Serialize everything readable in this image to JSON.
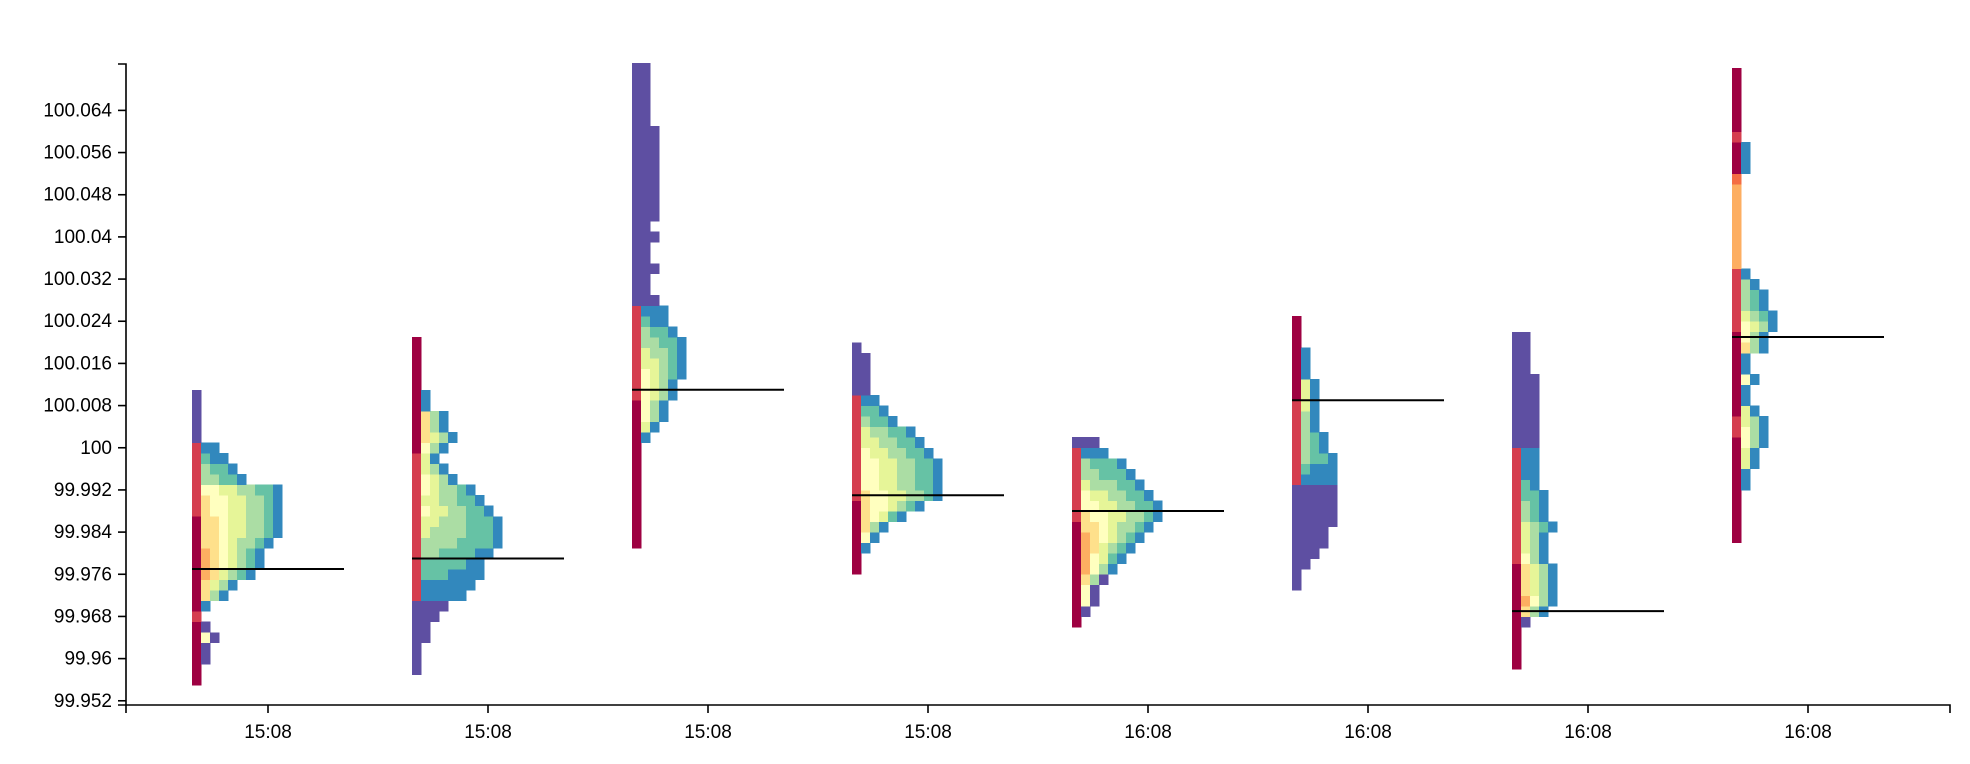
{
  "chart_data": {
    "type": "heatmap",
    "title": "",
    "xlabel": "",
    "ylabel": "",
    "ylim": [
      99.9512,
      100.0728
    ],
    "y_tick_labels": [
      "100.064",
      "100.056",
      "100.048",
      "100.04",
      "100.032",
      "100.024",
      "100.016",
      "100.008",
      "100",
      "99.992",
      "99.984",
      "99.976",
      "99.968",
      "99.96",
      "99.952"
    ],
    "y_tick_values": [
      100.064,
      100.056,
      100.048,
      100.04,
      100.032,
      100.024,
      100.016,
      100.008,
      100,
      99.992,
      99.984,
      99.976,
      99.968,
      99.96,
      99.952
    ],
    "x_tick_labels": [
      "15:08",
      "15:08",
      "15:08",
      "15:08",
      "16:08",
      "16:08",
      "16:08",
      "16:08"
    ],
    "price_step": 0.002,
    "palette": [
      "#9e0142",
      "#d53e4f",
      "#f46d43",
      "#fdae61",
      "#fee08b",
      "#ffffbf",
      "#e6f598",
      "#abdda4",
      "#66c2a5",
      "#3288bd",
      "#5e4fa2"
    ],
    "profiles": [
      {
        "label": "15:08",
        "close": 99.977,
        "low": 99.953,
        "high": 100.002,
        "widths": [
          0,
          1,
          1,
          2,
          2,
          3,
          2,
          1,
          2,
          4,
          5,
          7,
          8,
          8,
          9,
          10,
          10,
          10,
          10,
          10,
          6,
          5,
          4,
          3,
          1,
          1,
          1,
          1,
          1
        ],
        "split": [
          0,
          0,
          0,
          0,
          0,
          0.05,
          0.05,
          0.1,
          0.1,
          0.15,
          0.2,
          0.2,
          0.25,
          0.25,
          0.28,
          0.3,
          0.32,
          0.35,
          0.35,
          0.4,
          0.6,
          0.7,
          0.8,
          0.9,
          1,
          1,
          1,
          1,
          1
        ]
      },
      {
        "label": "15:08",
        "close": 99.979,
        "low": 99.957,
        "high": 100.01,
        "widths": [
          1,
          1,
          1,
          2,
          2,
          3,
          4,
          6,
          7,
          8,
          8,
          9,
          10,
          10,
          10,
          9,
          8,
          7,
          5,
          4,
          3,
          4,
          5,
          4,
          4,
          2,
          2,
          1,
          1,
          1,
          1,
          1
        ],
        "split": [
          1,
          1,
          1,
          1,
          1,
          1,
          1,
          0.9,
          0.85,
          0.8,
          0.75,
          0.7,
          0.65,
          0.6,
          0.55,
          0.5,
          0.5,
          0.45,
          0.4,
          0.4,
          0.35,
          0.3,
          0.3,
          0.2,
          0.2,
          0.1,
          0.1,
          0,
          0,
          0,
          0,
          0
        ]
      },
      {
        "label": "15:08",
        "close": 100.011,
        "low": 99.981,
        "high": 100.064,
        "widths": [
          1,
          1,
          1,
          1,
          1,
          1,
          1,
          1,
          1,
          1,
          2,
          3,
          4,
          4,
          5,
          5,
          6,
          6,
          6,
          6,
          5,
          4,
          4,
          3,
          2,
          2,
          3,
          2,
          2,
          3,
          2,
          3,
          3,
          3,
          3,
          3,
          3,
          3,
          3,
          3,
          2,
          2,
          2,
          2,
          2,
          2
        ],
        "split": [
          0,
          0,
          0,
          0,
          0,
          0,
          0,
          0,
          0,
          0,
          0.2,
          0.25,
          0.3,
          0.3,
          0.35,
          0.4,
          0.45,
          0.5,
          0.55,
          0.6,
          0.7,
          0.8,
          0.9,
          1,
          1,
          1,
          1,
          1,
          1,
          1,
          1,
          1,
          1,
          1,
          1,
          1,
          1,
          1,
          1,
          1,
          1,
          1,
          1,
          1,
          1,
          1
        ]
      },
      {
        "label": "15:08",
        "close": 99.991,
        "low": 99.976,
        "high": 100.02,
        "widths": [
          1,
          1,
          2,
          3,
          4,
          6,
          8,
          10,
          10,
          10,
          10,
          9,
          8,
          7,
          5,
          4,
          3,
          2,
          2,
          2,
          2,
          1
        ],
        "split": [
          0,
          0,
          0.1,
          0.15,
          0.2,
          0.25,
          0.3,
          0.35,
          0.4,
          0.4,
          0.45,
          0.5,
          0.55,
          0.6,
          0.65,
          0.7,
          0.8,
          1,
          1,
          1,
          1,
          1
        ]
      },
      {
        "label": "16:08",
        "close": 99.988,
        "low": 99.966,
        "high": 100.004,
        "widths": [
          1,
          2,
          3,
          3,
          4,
          5,
          6,
          7,
          8,
          9,
          10,
          10,
          9,
          8,
          7,
          6,
          4,
          3
        ],
        "split": [
          0,
          0,
          0,
          0,
          0.05,
          0.1,
          0.15,
          0.2,
          0.25,
          0.3,
          0.35,
          0.4,
          0.5,
          0.6,
          0.65,
          0.7,
          0.85,
          1
        ]
      },
      {
        "label": "16:08",
        "close": 100.009,
        "low": 99.973,
        "high": 100.024,
        "widths": [
          1,
          1,
          2,
          3,
          4,
          4,
          5,
          5,
          5,
          5,
          5,
          5,
          5,
          4,
          4,
          3,
          3,
          3,
          3,
          3,
          2,
          2,
          2,
          1,
          1,
          1
        ],
        "split": [
          1,
          1,
          1,
          1,
          1,
          1,
          1,
          1,
          1,
          1,
          0.9,
          0.8,
          0.7,
          0.6,
          0.55,
          0.5,
          0.45,
          0.4,
          0.3,
          0.2,
          0.1,
          0.1,
          0.1,
          0,
          0,
          0
        ]
      },
      {
        "label": "16:08",
        "close": 99.969,
        "low": 99.958,
        "high": 100.024,
        "widths": [
          1,
          1,
          1,
          1,
          2,
          4,
          5,
          5,
          5,
          5,
          4,
          4,
          4,
          5,
          4,
          4,
          4,
          3,
          3,
          3,
          3,
          3,
          3,
          3,
          3,
          3,
          3,
          3,
          2,
          2,
          2,
          2
        ],
        "split": [
          0,
          0,
          0,
          0,
          0,
          0.1,
          0.15,
          0.2,
          0.25,
          0.3,
          0.35,
          0.4,
          0.5,
          0.55,
          0.6,
          0.65,
          0.7,
          0.75,
          0.8,
          0.85,
          0.9,
          1,
          1,
          1,
          1,
          1,
          1,
          1,
          1,
          1,
          1,
          1
        ]
      },
      {
        "label": "16:08",
        "close": 100.021,
        "low": 99.982,
        "high": 100.072,
        "widths": [
          1,
          1,
          1,
          1,
          1,
          2,
          2,
          3,
          3,
          4,
          4,
          4,
          3,
          2,
          2,
          3,
          2,
          2,
          4,
          4,
          5,
          5,
          4,
          4,
          3,
          2,
          1,
          1,
          1,
          1,
          1,
          1,
          1,
          1,
          1,
          2,
          2,
          2,
          1,
          1,
          1,
          1,
          1,
          1,
          1
        ],
        "split": [
          0,
          0,
          0,
          0,
          0,
          0.1,
          0.15,
          0.2,
          0.25,
          0.3,
          0.35,
          0.4,
          0.3,
          0.2,
          0.1,
          0.15,
          0.1,
          0.1,
          0.2,
          0.3,
          0.4,
          0.5,
          0.6,
          0.6,
          0.5,
          0.4,
          0.3,
          0.3,
          0.3,
          0.3,
          0.3,
          0.3,
          0.3,
          0.3,
          0.2,
          0.15,
          0.1,
          0.1,
          0.1,
          0,
          0,
          0,
          0,
          0,
          0
        ]
      }
    ]
  }
}
